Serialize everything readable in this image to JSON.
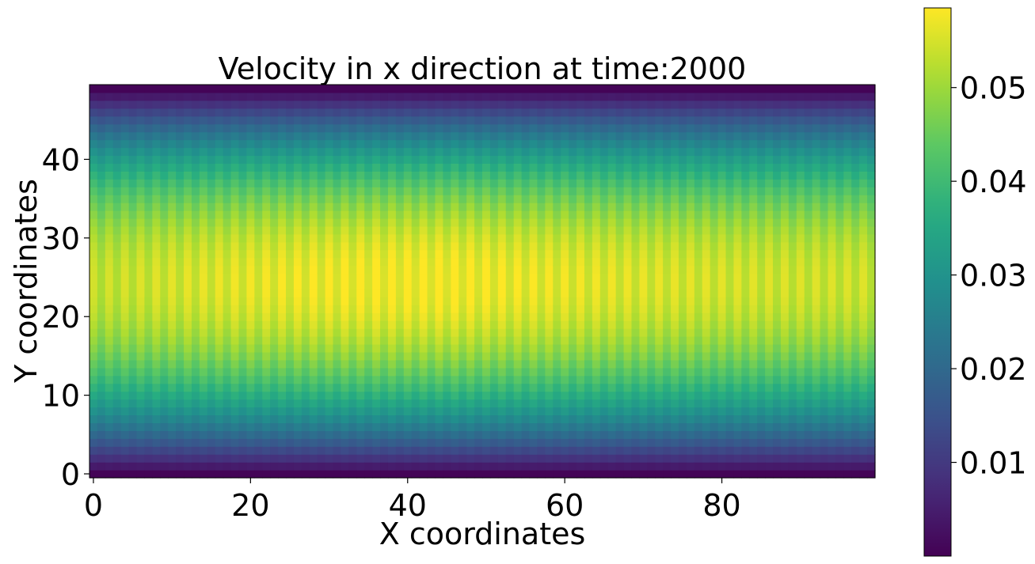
{
  "chart_data": {
    "type": "heatmap",
    "title": "Velocity in x direction at time:2000",
    "xlabel": "X coordinates",
    "ylabel": "Y coordinates",
    "colormap": "viridis",
    "grid_size": {
      "nx": 100,
      "ny": 50
    },
    "xlim": [
      -0.5,
      99.5
    ],
    "ylim": [
      -0.5,
      49.5
    ],
    "x_ticks": [
      0,
      20,
      40,
      60,
      80
    ],
    "x_tick_labels": [
      "0",
      "20",
      "40",
      "60",
      "80"
    ],
    "y_ticks": [
      0,
      10,
      20,
      30,
      40
    ],
    "y_tick_labels": [
      "0",
      "10",
      "20",
      "30",
      "40"
    ],
    "colorbar": {
      "range": [
        0.0,
        0.0585
      ],
      "ticks": [
        0.01,
        0.02,
        0.03,
        0.04,
        0.05
      ],
      "tick_labels": [
        "0.01",
        "0.02",
        "0.03",
        "0.04",
        "0.05"
      ]
    },
    "field": {
      "description_of_values": "u_x(x,y) ≈ u_max(x) * (1 - ((y-24.5)/24.5)^2) * (1 + stripe) ; walls at y=0 and y=49 are ~0",
      "u_max_center": 0.0575,
      "u_max_inlet": 0.053,
      "u_max_outlet": 0.054,
      "peak_x": 45,
      "stripe_amplitude": 0.035,
      "stripe_period_cells": 2
    }
  }
}
